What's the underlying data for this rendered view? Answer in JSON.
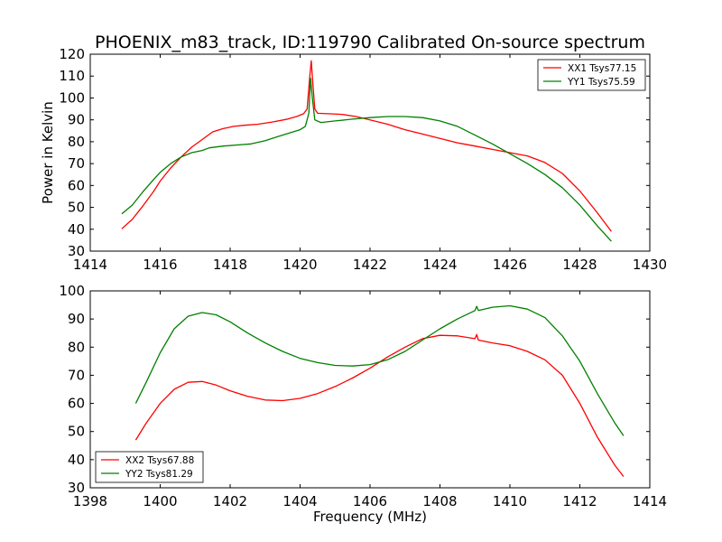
{
  "figure": {
    "title": "PHOENIX_m83_track, ID:119790 Calibrated On-source spectrum"
  },
  "chart_data": [
    {
      "type": "line",
      "title": "PHOENIX_m83_track, ID:119790 Calibrated On-source spectrum",
      "xlabel": "",
      "ylabel": "Power in Kelvin",
      "xlim": [
        1414,
        1430
      ],
      "ylim": [
        30,
        120
      ],
      "xticks": [
        1414,
        1416,
        1418,
        1420,
        1422,
        1424,
        1426,
        1428,
        1430
      ],
      "yticks": [
        30,
        40,
        50,
        60,
        70,
        80,
        90,
        100,
        110,
        120
      ],
      "grid": false,
      "legend_position": "upper right",
      "series": [
        {
          "name": "XX1 Tsys77.15",
          "color": "#ff0000",
          "points": [
            [
              1414.9,
              40.2
            ],
            [
              1415.2,
              44.5
            ],
            [
              1415.5,
              50.5
            ],
            [
              1415.8,
              57
            ],
            [
              1416.0,
              62
            ],
            [
              1416.3,
              68
            ],
            [
              1416.6,
              73
            ],
            [
              1416.9,
              77.5
            ],
            [
              1417.2,
              81
            ],
            [
              1417.5,
              84.5
            ],
            [
              1417.8,
              86
            ],
            [
              1418.1,
              87
            ],
            [
              1418.4,
              87.5
            ],
            [
              1418.8,
              88
            ],
            [
              1419.2,
              89
            ],
            [
              1419.6,
              90.2
            ],
            [
              1419.9,
              91.5
            ],
            [
              1420.1,
              92.8
            ],
            [
              1420.2,
              95
            ],
            [
              1420.28,
              110
            ],
            [
              1420.32,
              117
            ],
            [
              1420.36,
              108
            ],
            [
              1420.42,
              95
            ],
            [
              1420.5,
              93
            ],
            [
              1420.8,
              92.8
            ],
            [
              1421.2,
              92.5
            ],
            [
              1421.6,
              91.5
            ],
            [
              1422.0,
              90
            ],
            [
              1422.5,
              88
            ],
            [
              1423.0,
              85.5
            ],
            [
              1423.5,
              83.5
            ],
            [
              1424.0,
              81.5
            ],
            [
              1424.5,
              79.5
            ],
            [
              1425.0,
              78
            ],
            [
              1425.5,
              76.5
            ],
            [
              1426.0,
              75
            ],
            [
              1426.5,
              73.5
            ],
            [
              1427.0,
              70.5
            ],
            [
              1427.5,
              65.5
            ],
            [
              1428.0,
              57.5
            ],
            [
              1428.5,
              47.5
            ],
            [
              1428.9,
              39
            ]
          ]
        },
        {
          "name": "YY1 Tsys75.59",
          "color": "#008000",
          "points": [
            [
              1414.9,
              47
            ],
            [
              1415.2,
              51
            ],
            [
              1415.5,
              57
            ],
            [
              1415.8,
              62.5
            ],
            [
              1416.0,
              66
            ],
            [
              1416.3,
              70
            ],
            [
              1416.6,
              73
            ],
            [
              1416.9,
              75
            ],
            [
              1417.2,
              76
            ],
            [
              1417.4,
              77.2
            ],
            [
              1417.8,
              78
            ],
            [
              1418.2,
              78.5
            ],
            [
              1418.6,
              79
            ],
            [
              1419.0,
              80.5
            ],
            [
              1419.4,
              82.5
            ],
            [
              1419.8,
              84.5
            ],
            [
              1420.0,
              85.5
            ],
            [
              1420.15,
              87
            ],
            [
              1420.25,
              93
            ],
            [
              1420.3,
              109
            ],
            [
              1420.35,
              100
            ],
            [
              1420.42,
              90
            ],
            [
              1420.6,
              88.8
            ],
            [
              1421.0,
              89.5
            ],
            [
              1421.5,
              90.3
            ],
            [
              1422.0,
              91
            ],
            [
              1422.5,
              91.5
            ],
            [
              1423.0,
              91.5
            ],
            [
              1423.5,
              91
            ],
            [
              1424.0,
              89.5
            ],
            [
              1424.5,
              87
            ],
            [
              1425.0,
              83
            ],
            [
              1425.5,
              79
            ],
            [
              1426.0,
              74.5
            ],
            [
              1426.5,
              70
            ],
            [
              1427.0,
              65
            ],
            [
              1427.5,
              59
            ],
            [
              1428.0,
              51
            ],
            [
              1428.5,
              41.5
            ],
            [
              1428.9,
              34.5
            ]
          ]
        }
      ]
    },
    {
      "type": "line",
      "title": "",
      "xlabel": "Frequency (MHz)",
      "ylabel": "",
      "xlim": [
        1398,
        1414
      ],
      "ylim": [
        30,
        100
      ],
      "xticks": [
        1398,
        1400,
        1402,
        1404,
        1406,
        1408,
        1410,
        1412,
        1414
      ],
      "yticks": [
        30,
        40,
        50,
        60,
        70,
        80,
        90,
        100
      ],
      "grid": false,
      "legend_position": "lower left",
      "series": [
        {
          "name": "XX2 Tsys67.88",
          "color": "#ff0000",
          "points": [
            [
              1399.3,
              47
            ],
            [
              1399.6,
              53
            ],
            [
              1400.0,
              60
            ],
            [
              1400.4,
              65
            ],
            [
              1400.8,
              67.5
            ],
            [
              1401.2,
              67.8
            ],
            [
              1401.6,
              66.5
            ],
            [
              1402.0,
              64.5
            ],
            [
              1402.5,
              62.5
            ],
            [
              1403.0,
              61.2
            ],
            [
              1403.5,
              61
            ],
            [
              1404.0,
              61.8
            ],
            [
              1404.5,
              63.5
            ],
            [
              1405.0,
              66
            ],
            [
              1405.5,
              69
            ],
            [
              1406.0,
              72.5
            ],
            [
              1406.5,
              76.5
            ],
            [
              1407.0,
              80
            ],
            [
              1407.5,
              83
            ],
            [
              1408.0,
              84.2
            ],
            [
              1408.5,
              84
            ],
            [
              1409.0,
              83
            ],
            [
              1409.05,
              84.5
            ],
            [
              1409.1,
              82.5
            ],
            [
              1409.5,
              81.5
            ],
            [
              1410.0,
              80.5
            ],
            [
              1410.5,
              78.5
            ],
            [
              1411.0,
              75.5
            ],
            [
              1411.5,
              70
            ],
            [
              1412.0,
              60
            ],
            [
              1412.5,
              48
            ],
            [
              1413.0,
              38
            ],
            [
              1413.25,
              34
            ]
          ]
        },
        {
          "name": "YY2 Tsys81.29",
          "color": "#008000",
          "points": [
            [
              1399.3,
              60
            ],
            [
              1399.6,
              67.5
            ],
            [
              1400.0,
              78
            ],
            [
              1400.4,
              86.5
            ],
            [
              1400.8,
              91
            ],
            [
              1401.2,
              92.3
            ],
            [
              1401.6,
              91.5
            ],
            [
              1402.0,
              89
            ],
            [
              1402.5,
              85
            ],
            [
              1403.0,
              81.5
            ],
            [
              1403.5,
              78.5
            ],
            [
              1404.0,
              76
            ],
            [
              1404.5,
              74.5
            ],
            [
              1405.0,
              73.5
            ],
            [
              1405.5,
              73.3
            ],
            [
              1406.0,
              73.8
            ],
            [
              1406.5,
              75.5
            ],
            [
              1407.0,
              78.5
            ],
            [
              1407.5,
              82.5
            ],
            [
              1408.0,
              86.5
            ],
            [
              1408.5,
              90
            ],
            [
              1409.0,
              93
            ],
            [
              1409.05,
              94.5
            ],
            [
              1409.1,
              93
            ],
            [
              1409.5,
              94.2
            ],
            [
              1410.0,
              94.7
            ],
            [
              1410.5,
              93.5
            ],
            [
              1411.0,
              90.5
            ],
            [
              1411.5,
              84
            ],
            [
              1412.0,
              75
            ],
            [
              1412.5,
              63.5
            ],
            [
              1413.0,
              53
            ],
            [
              1413.25,
              48.5
            ]
          ]
        }
      ]
    }
  ]
}
